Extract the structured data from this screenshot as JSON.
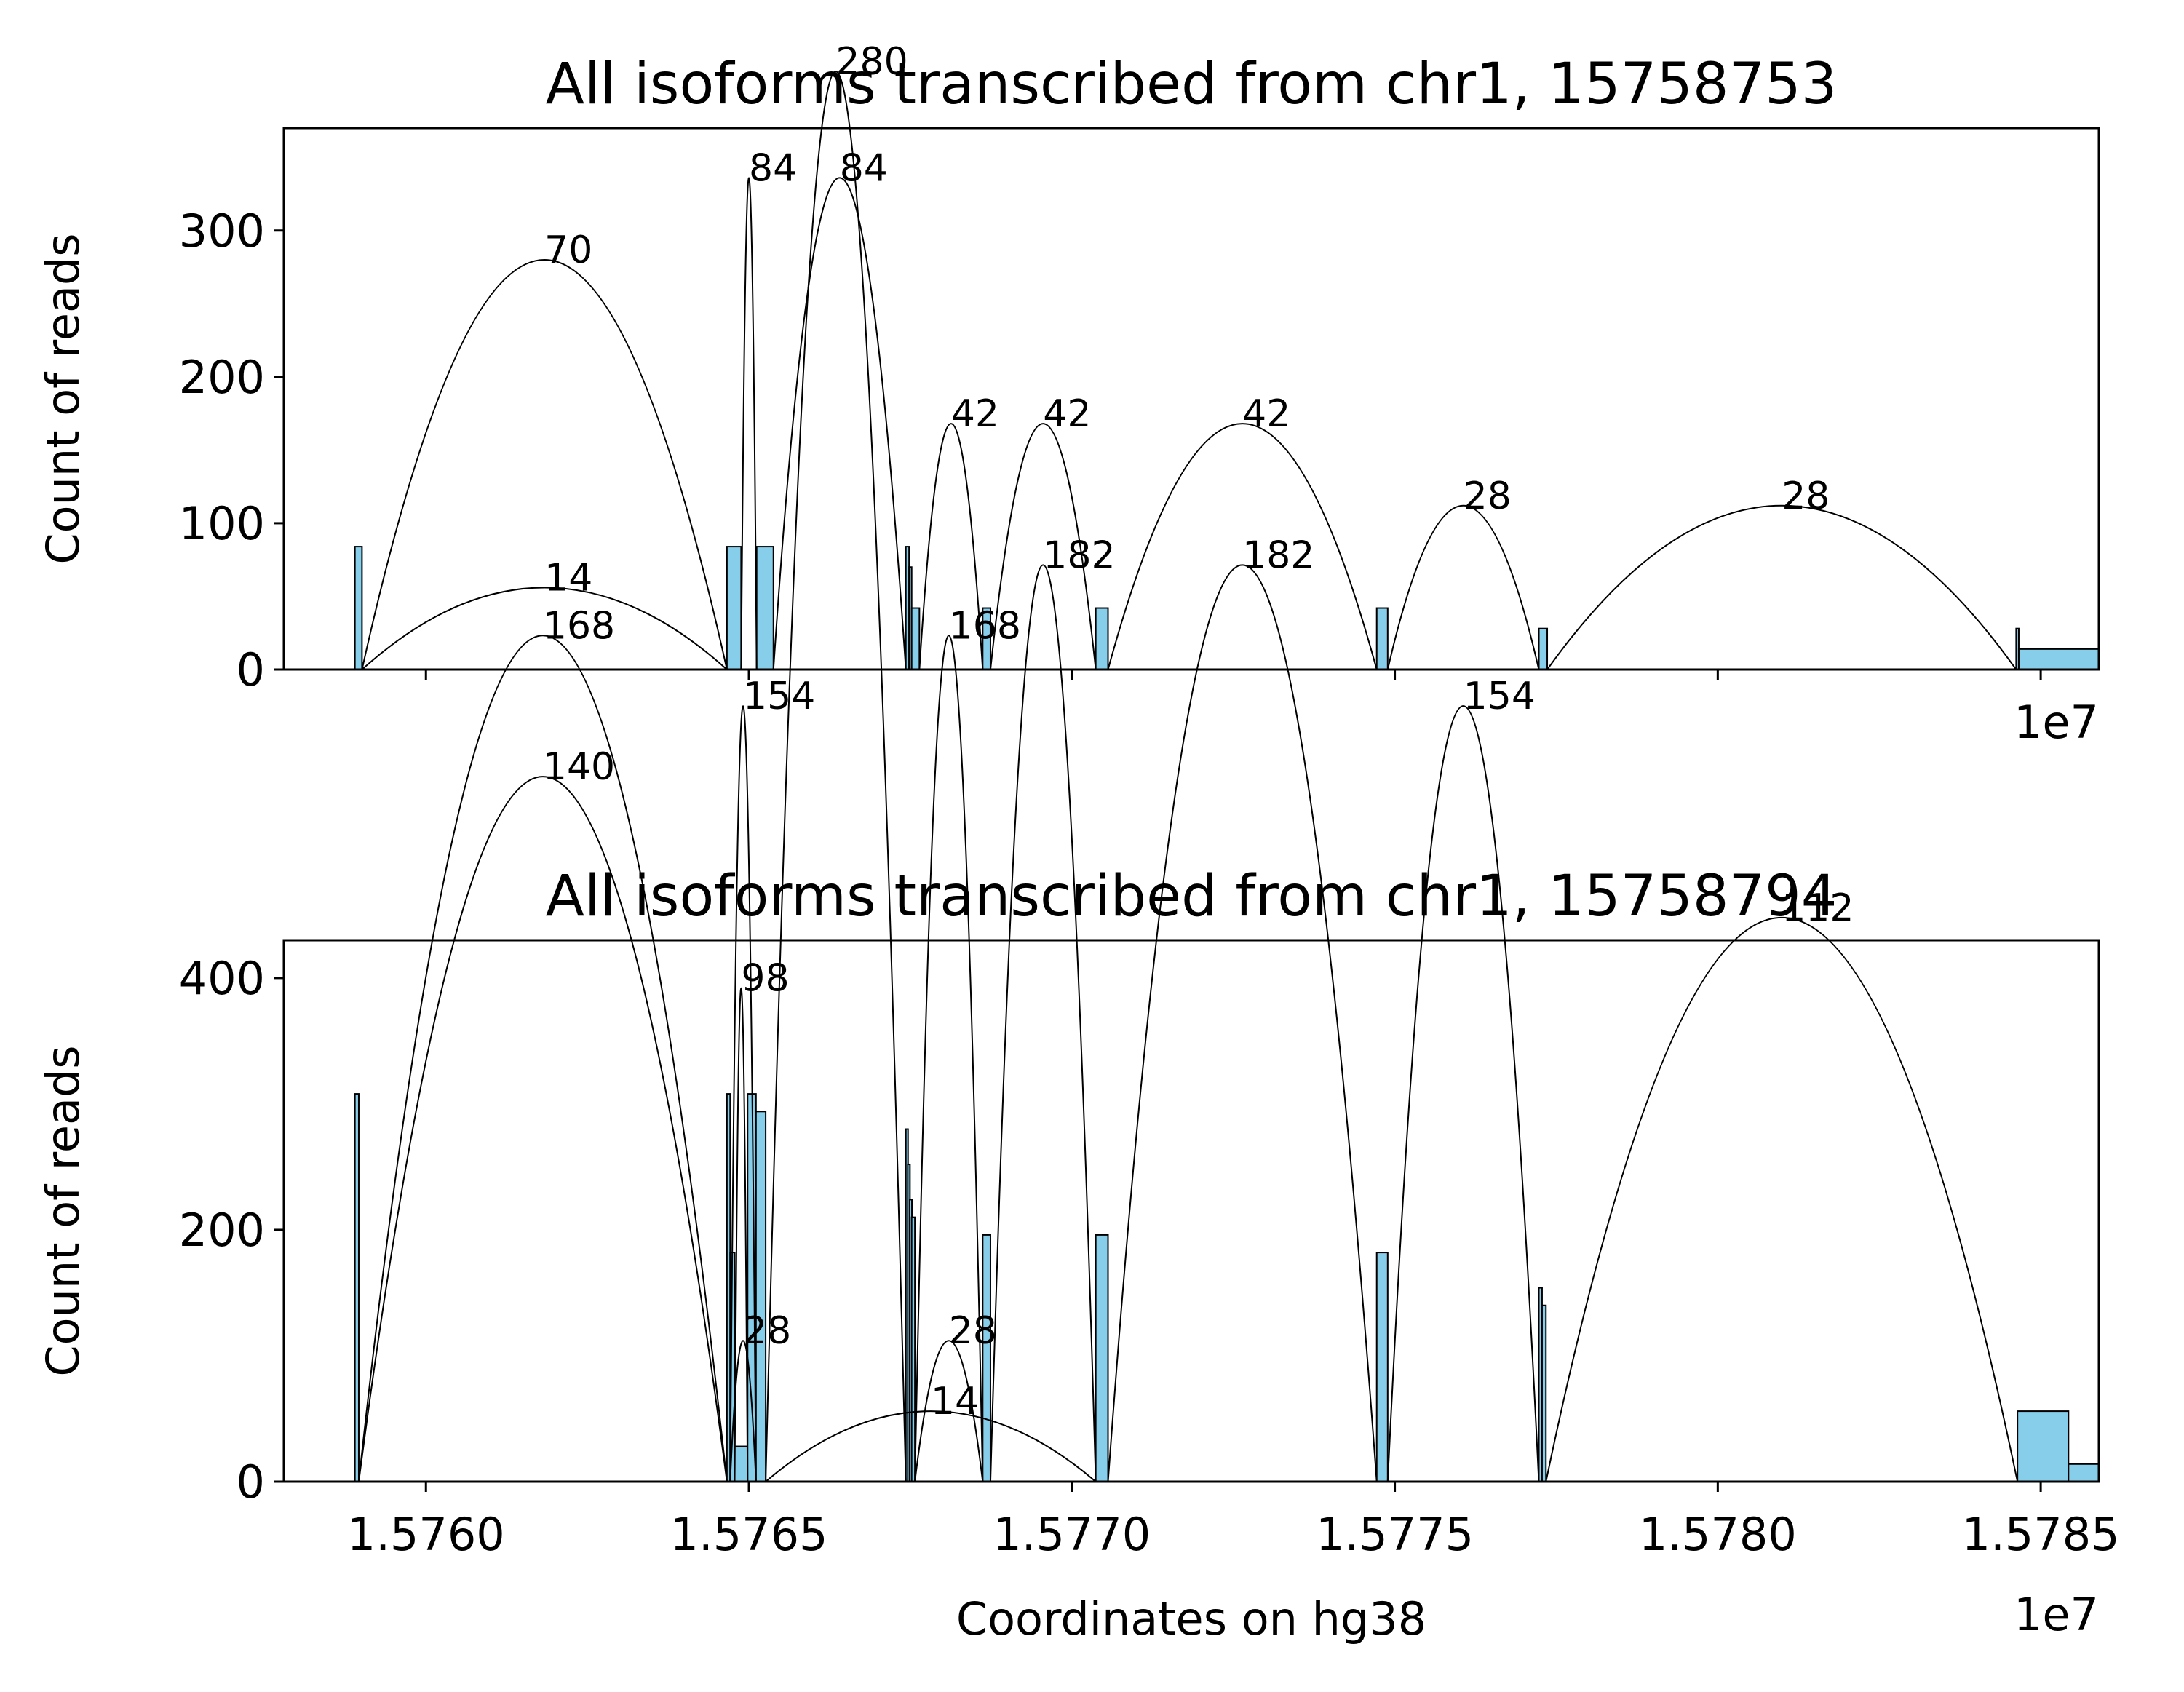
{
  "chart_data": [
    {
      "type": "sashimi",
      "title": "All isoforms transcribed from chr1, 15758753",
      "ylabel": "Count of reads",
      "xlabel": "",
      "x_offset_label": "1e7",
      "xlim": [
        1.57578,
        1.57859
      ],
      "ylim": [
        0,
        370
      ],
      "y_ticks": [
        0,
        100,
        200,
        300
      ],
      "y_tick_labels": [
        "0",
        "100",
        "200",
        "300"
      ],
      "x_ticks": [
        1.576,
        1.5765,
        1.577,
        1.5775,
        1.578,
        1.5785
      ],
      "x_tick_labels": [],
      "coverage": [
        {
          "start": 1.57589,
          "end": 1.575901,
          "value": 84
        },
        {
          "start": 1.575944,
          "end": 1.576466,
          "value": 0
        },
        {
          "start": 1.576466,
          "end": 1.576488,
          "value": 84
        },
        {
          "start": 1.576512,
          "end": 1.576538,
          "value": 84
        },
        {
          "start": 1.576743,
          "end": 1.576748,
          "value": 84
        },
        {
          "start": 1.576748,
          "end": 1.576752,
          "value": 70
        },
        {
          "start": 1.576752,
          "end": 1.576764,
          "value": 42
        },
        {
          "start": 1.576862,
          "end": 1.576874,
          "value": 42
        },
        {
          "start": 1.577037,
          "end": 1.577056,
          "value": 42
        },
        {
          "start": 1.577472,
          "end": 1.577489,
          "value": 42
        },
        {
          "start": 1.577723,
          "end": 1.577736,
          "value": 28
        },
        {
          "start": 1.578462,
          "end": 1.578466,
          "value": 28
        },
        {
          "start": 1.578466,
          "end": 1.57859,
          "value": 14
        }
      ],
      "junctions": [
        {
          "start": 1.575901,
          "end": 1.576466,
          "count": 70,
          "label": "70"
        },
        {
          "start": 1.575901,
          "end": 1.576466,
          "count": 14,
          "label": "14"
        },
        {
          "start": 1.576488,
          "end": 1.576512,
          "count": 84,
          "label": "84"
        },
        {
          "start": 1.576538,
          "end": 1.576743,
          "count": 84,
          "label": "84"
        },
        {
          "start": 1.576764,
          "end": 1.576862,
          "count": 42,
          "label": "42"
        },
        {
          "start": 1.576874,
          "end": 1.577037,
          "count": 42,
          "label": "42"
        },
        {
          "start": 1.577056,
          "end": 1.577472,
          "count": 42,
          "label": "42"
        },
        {
          "start": 1.577489,
          "end": 1.577723,
          "count": 28,
          "label": "28"
        },
        {
          "start": 1.577736,
          "end": 1.578462,
          "count": 28,
          "label": "28"
        }
      ]
    },
    {
      "type": "sashimi",
      "title": "All isoforms transcribed from chr1, 15758794",
      "ylabel": "Count of reads",
      "xlabel": "Coordinates on hg38",
      "x_offset_label": "1e7",
      "xlim": [
        1.57578,
        1.57859
      ],
      "ylim": [
        0,
        430
      ],
      "y_ticks": [
        0,
        200,
        400
      ],
      "y_tick_labels": [
        "0",
        "200",
        "400"
      ],
      "x_ticks": [
        1.576,
        1.5765,
        1.577,
        1.5775,
        1.578,
        1.5785
      ],
      "x_tick_labels": [
        "1.5760",
        "1.5765",
        "1.5770",
        "1.5775",
        "1.5780",
        "1.5785"
      ],
      "coverage": [
        {
          "start": 1.57589,
          "end": 1.575896,
          "value": 308
        },
        {
          "start": 1.576466,
          "end": 1.576471,
          "value": 308
        },
        {
          "start": 1.576471,
          "end": 1.576478,
          "value": 182
        },
        {
          "start": 1.576478,
          "end": 1.576498,
          "value": 28
        },
        {
          "start": 1.576498,
          "end": 1.576511,
          "value": 308
        },
        {
          "start": 1.576511,
          "end": 1.576526,
          "value": 294
        },
        {
          "start": 1.576743,
          "end": 1.576746,
          "value": 280
        },
        {
          "start": 1.576746,
          "end": 1.576749,
          "value": 252
        },
        {
          "start": 1.576749,
          "end": 1.576752,
          "value": 224
        },
        {
          "start": 1.576752,
          "end": 1.576757,
          "value": 210
        },
        {
          "start": 1.576862,
          "end": 1.576874,
          "value": 196
        },
        {
          "start": 1.577037,
          "end": 1.577056,
          "value": 196
        },
        {
          "start": 1.577472,
          "end": 1.577489,
          "value": 182
        },
        {
          "start": 1.577723,
          "end": 1.577728,
          "value": 154
        },
        {
          "start": 1.577728,
          "end": 1.577734,
          "value": 140
        },
        {
          "start": 1.578464,
          "end": 1.578543,
          "value": 56
        },
        {
          "start": 1.578543,
          "end": 1.57859,
          "value": 14
        }
      ],
      "junctions": [
        {
          "start": 1.575896,
          "end": 1.576466,
          "count": 168,
          "label": "168"
        },
        {
          "start": 1.575896,
          "end": 1.576466,
          "count": 140,
          "label": "140"
        },
        {
          "start": 1.576471,
          "end": 1.576511,
          "count": 154,
          "label": "154"
        },
        {
          "start": 1.576478,
          "end": 1.576498,
          "count": 98,
          "label": "98"
        },
        {
          "start": 1.576471,
          "end": 1.576511,
          "count": 28,
          "label": "28"
        },
        {
          "start": 1.576526,
          "end": 1.576743,
          "count": 280,
          "label": "280"
        },
        {
          "start": 1.576526,
          "end": 1.577037,
          "count": 14,
          "label": "14"
        },
        {
          "start": 1.576757,
          "end": 1.576862,
          "count": 168,
          "label": "168"
        },
        {
          "start": 1.576757,
          "end": 1.576862,
          "count": 28,
          "label": "28"
        },
        {
          "start": 1.576874,
          "end": 1.577037,
          "count": 182,
          "label": "182"
        },
        {
          "start": 1.577056,
          "end": 1.577472,
          "count": 182,
          "label": "182"
        },
        {
          "start": 1.577489,
          "end": 1.577723,
          "count": 154,
          "label": "154"
        },
        {
          "start": 1.577734,
          "end": 1.578464,
          "count": 112,
          "label": "112"
        }
      ]
    }
  ],
  "colors": {
    "coverage_fill": "#87ceeb",
    "coverage_edge": "#000000",
    "junction_line": "#000000",
    "axis": "#000000"
  }
}
